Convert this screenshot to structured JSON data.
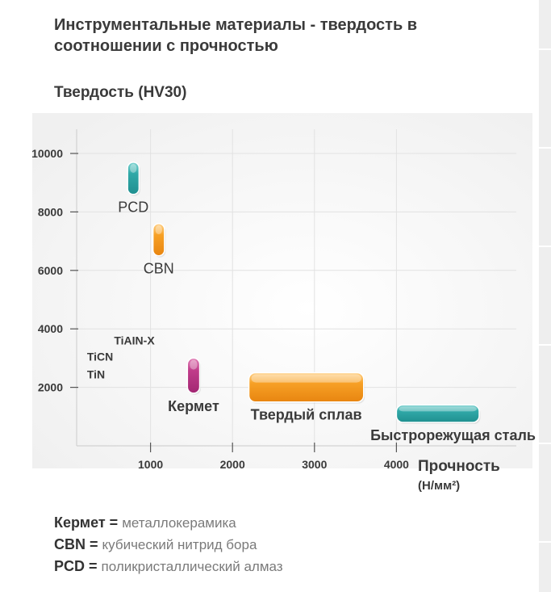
{
  "chart_data": {
    "type": "bar",
    "title": "Инструментальные материалы - твердость в соотношении с прочностью",
    "ylabel": "Твердость (HV30)",
    "xlabel": "Прочность",
    "xlabel_unit": "(Н/мм²)",
    "xlim": [
      0,
      4900
    ],
    "ylim": [
      0,
      11000
    ],
    "x_ticks": [
      1000,
      2000,
      3000,
      4000
    ],
    "y_ticks": [
      2000,
      4000,
      6000,
      8000,
      10000
    ],
    "x_tick_labels": [
      "1000",
      "2000",
      "3000",
      "4000"
    ],
    "y_tick_labels": [
      "2000",
      "4000",
      "6000",
      "8000",
      "10000"
    ],
    "grid": true,
    "series": [
      {
        "name": "PCD",
        "x_range": [
          720,
          860
        ],
        "y_range": [
          8600,
          9700
        ],
        "color": "#2a9ea0"
      },
      {
        "name": "CBN",
        "x_range": [
          1030,
          1170
        ],
        "y_range": [
          6500,
          7600
        ],
        "color": "#f2961e"
      },
      {
        "name": "Кермет",
        "x_range": [
          1450,
          1600
        ],
        "y_range": [
          1800,
          3000
        ],
        "color": "#b8307e"
      },
      {
        "name": "Твердый сплав",
        "x_range": [
          2200,
          3600
        ],
        "y_range": [
          1500,
          2500
        ],
        "color": "#f2961e"
      },
      {
        "name": "Быстрорежущая сталь",
        "x_range": [
          4000,
          5100
        ],
        "y_range": [
          800,
          1400
        ],
        "color": "#2a9ea0"
      }
    ],
    "annotations": [
      {
        "text": "TiAIN-X",
        "x": 850,
        "y": 3600
      },
      {
        "text": "TiCN",
        "x": 520,
        "y": 3050
      },
      {
        "text": "TiN",
        "x": 520,
        "y": 2450
      }
    ]
  },
  "legend": [
    {
      "key": "Кермет",
      "eq": " = ",
      "desc": "металлокерамика"
    },
    {
      "key": "CBN",
      "eq": " = ",
      "desc": "кубический нитрид бора"
    },
    {
      "key": "PCD",
      "eq": " = ",
      "desc": "поликристаллический алмаз"
    }
  ]
}
